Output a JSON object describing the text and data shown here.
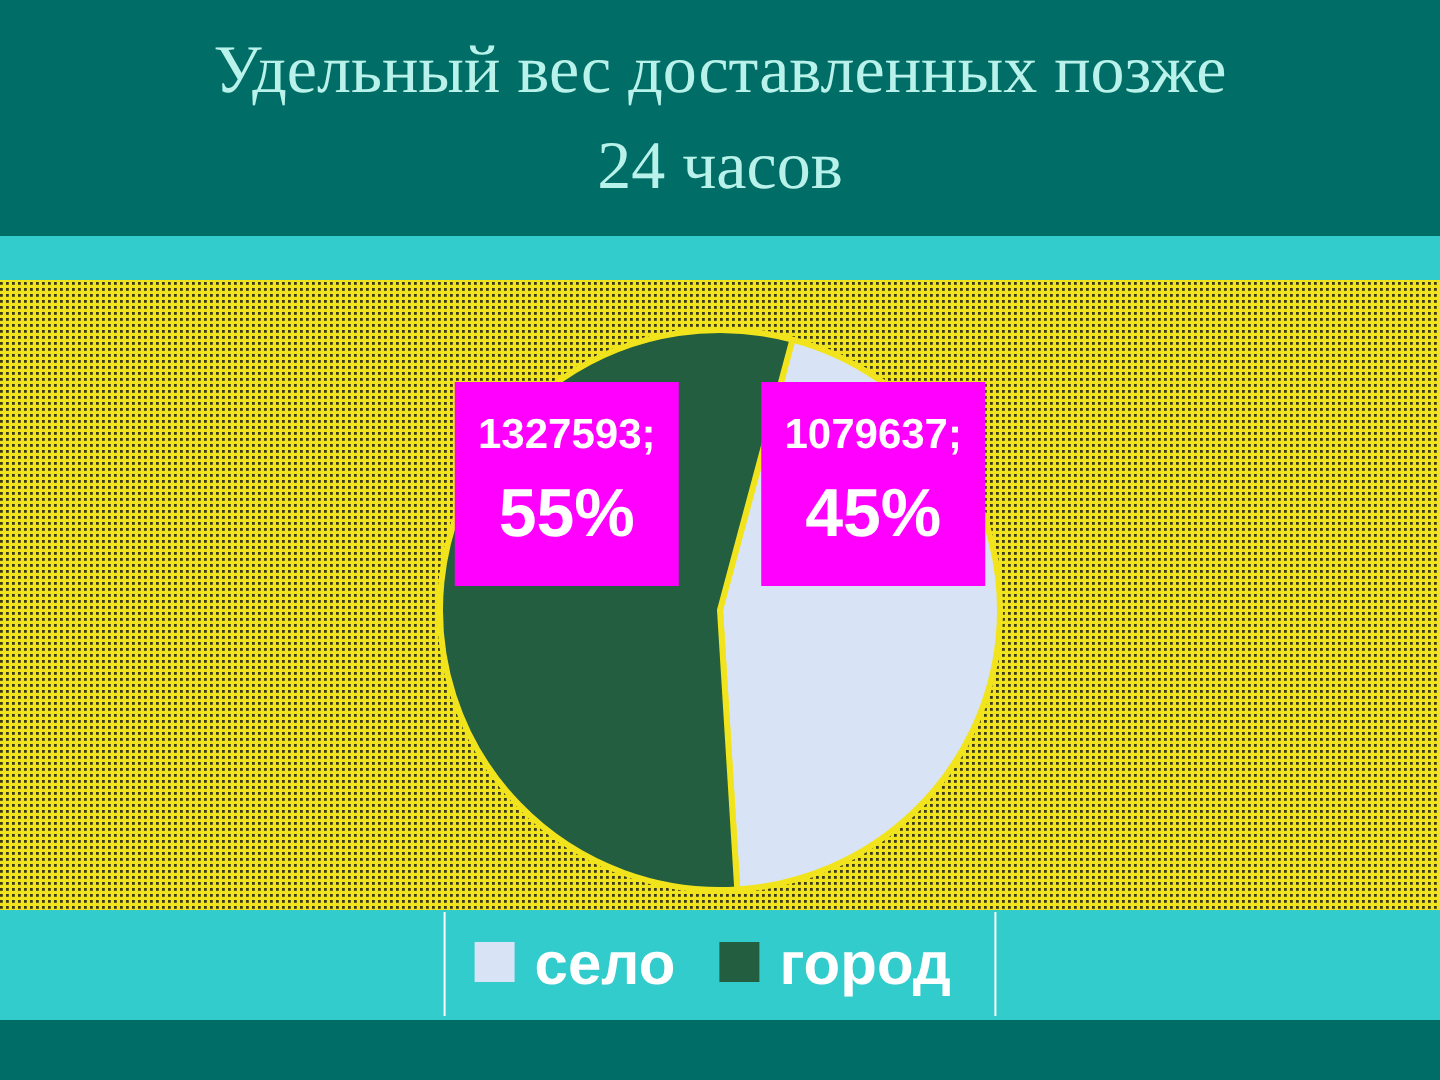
{
  "chart_data": {
    "type": "pie",
    "title": "Удельный вес доставленных позже\n24 часов",
    "categories": [
      "село",
      "город"
    ],
    "values": [
      1079637,
      1327593
    ],
    "colors": [
      "#d8e3f6",
      "#245e40"
    ],
    "value_labels": [
      "1079637;\n45%",
      "1327593;\n55%"
    ],
    "legend": "bottom"
  }
}
